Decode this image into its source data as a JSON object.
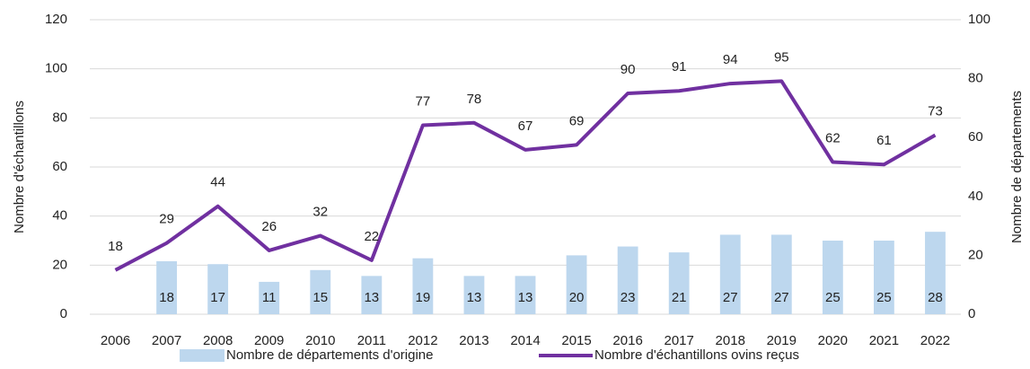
{
  "chart_data": {
    "type": "bar-line",
    "categories": [
      "2006",
      "2007",
      "2008",
      "2009",
      "2010",
      "2011",
      "2012",
      "2013",
      "2014",
      "2015",
      "2016",
      "2017",
      "2018",
      "2019",
      "2020",
      "2021",
      "2022"
    ],
    "series": [
      {
        "name": "Nombre de départements d'origine",
        "type": "bar",
        "axis": "y2",
        "color": "#bdd7ee",
        "values": [
          null,
          18,
          17,
          11,
          15,
          13,
          19,
          13,
          13,
          20,
          23,
          21,
          27,
          27,
          25,
          25,
          28
        ]
      },
      {
        "name": "Nombre d'échantillons ovins reçus",
        "type": "line",
        "axis": "y",
        "color": "#7030a0",
        "values": [
          18,
          29,
          44,
          26,
          32,
          22,
          77,
          78,
          67,
          69,
          90,
          91,
          94,
          95,
          62,
          61,
          73
        ]
      }
    ],
    "ylabel": "Nombre d'échantillons",
    "y2label": "Nombre de départements",
    "ylim": [
      0,
      120
    ],
    "yticks": [
      0,
      20,
      40,
      60,
      80,
      100,
      120
    ],
    "y2lim": [
      0,
      100
    ],
    "y2ticks": [
      0,
      20,
      40,
      60,
      80,
      100
    ],
    "grid": true,
    "legend": "bottom"
  }
}
